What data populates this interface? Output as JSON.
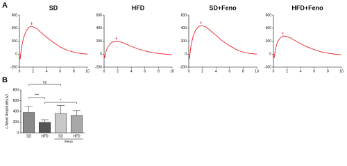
{
  "panels": [
    {
      "label": "A"
    },
    {
      "label": "B"
    }
  ],
  "chart_data": [
    {
      "type": "line",
      "title": "SD",
      "color": "#e8202a",
      "x": [
        0,
        0.1,
        0.3,
        0.6,
        1,
        1.4,
        1.8,
        2.5,
        3,
        4,
        5,
        6,
        7,
        8,
        9,
        10
      ],
      "values": [
        0,
        -80,
        100,
        250,
        360,
        415,
        430,
        400,
        350,
        260,
        180,
        110,
        60,
        30,
        10,
        0
      ],
      "xlim": [
        0,
        10
      ],
      "xticks": [
        0,
        2,
        4,
        6,
        8,
        10
      ],
      "ylim": [
        -200,
        600
      ],
      "yticks": [
        -200,
        0,
        200,
        400,
        600
      ]
    },
    {
      "type": "line",
      "title": "HFD",
      "color": "#e8202a",
      "x": [
        0,
        0.1,
        0.3,
        0.6,
        1,
        1.4,
        1.8,
        2.5,
        3,
        4,
        5,
        6,
        7,
        8,
        9,
        10
      ],
      "values": [
        0,
        -60,
        50,
        120,
        170,
        195,
        200,
        185,
        165,
        120,
        80,
        50,
        25,
        10,
        0,
        -10
      ],
      "xlim": [
        0,
        10
      ],
      "xticks": [
        0,
        2,
        4,
        6,
        8,
        10
      ],
      "ylim": [
        -200,
        600
      ],
      "yticks": [
        -200,
        0,
        200,
        400,
        600
      ]
    },
    {
      "type": "line",
      "title": "SD+Feno",
      "color": "#e8202a",
      "x": [
        0,
        0.1,
        0.3,
        0.6,
        1,
        1.4,
        1.8,
        2.5,
        3,
        4,
        5,
        6,
        7,
        8,
        9,
        10
      ],
      "values": [
        0,
        -70,
        110,
        260,
        370,
        420,
        440,
        420,
        380,
        290,
        200,
        130,
        70,
        30,
        10,
        0
      ],
      "xlim": [
        0,
        10
      ],
      "xticks": [
        0,
        2,
        4,
        6,
        8,
        10
      ],
      "ylim": [
        -200,
        600
      ],
      "yticks": [
        -200,
        0,
        200,
        400,
        600
      ]
    },
    {
      "type": "line",
      "title": "HFD+Feno",
      "color": "#e8202a",
      "x": [
        0,
        0.1,
        0.3,
        0.6,
        1,
        1.4,
        1.8,
        2.5,
        3,
        4,
        5,
        6,
        7,
        8,
        9,
        10
      ],
      "values": [
        0,
        -60,
        80,
        190,
        250,
        280,
        275,
        250,
        220,
        160,
        110,
        70,
        35,
        15,
        0,
        -10
      ],
      "xlim": [
        0,
        10
      ],
      "xticks": [
        0,
        2,
        4,
        6,
        8,
        10
      ],
      "ylim": [
        -200,
        600
      ],
      "yticks": [
        -200,
        0,
        200,
        400,
        600
      ]
    },
    {
      "type": "bar",
      "y_label": "c-Wave Amplitude(uV)",
      "categories": [
        "SD",
        "HFD",
        "SD",
        "HFD"
      ],
      "group_label": "Feno",
      "values": [
        380,
        195,
        360,
        325
      ],
      "errors": [
        120,
        50,
        150,
        90
      ],
      "colors": [
        "#8a8a8a",
        "#555555",
        "#c8c8c8",
        "#a8a8a8"
      ],
      "ylim": [
        0,
        800
      ],
      "yticks": [
        0,
        200,
        400,
        600,
        800
      ],
      "annotations": [
        "ns",
        "***",
        "*"
      ]
    }
  ]
}
